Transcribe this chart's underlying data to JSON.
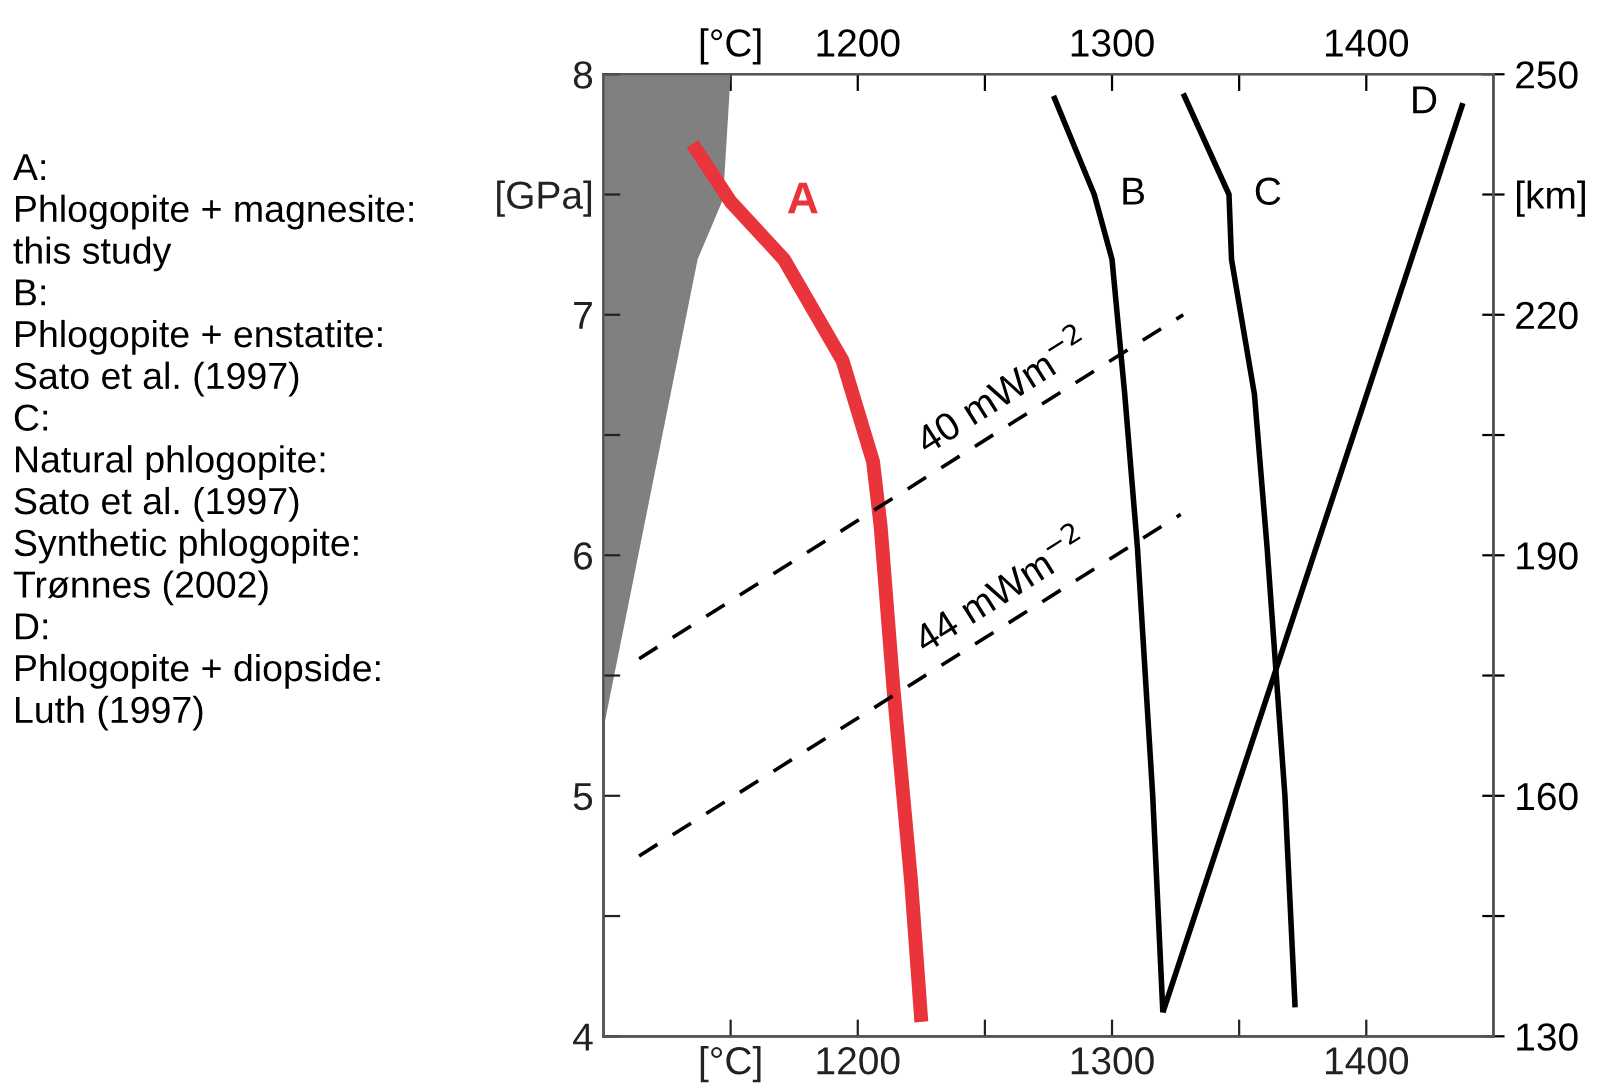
{
  "chart_data": {
    "type": "line",
    "xlim": [
      1100,
      1450
    ],
    "xticks": [
      {
        "value": 1150,
        "label": "[°C]"
      },
      1200,
      {
        "value": 1250,
        "label": null
      },
      1300,
      {
        "value": 1350,
        "label": null
      },
      1400
    ],
    "x2lim": [
      1100,
      1450
    ],
    "x2ticks": [
      {
        "value": 1150,
        "label": "[°C]"
      },
      1200,
      {
        "value": 1250,
        "label": null
      },
      1300,
      {
        "value": 1350,
        "label": null
      },
      1400
    ],
    "ylim": [
      4,
      8
    ],
    "yticks": [
      4,
      {
        "value": 4.5,
        "label": null
      },
      5,
      {
        "value": 5.5,
        "label": null
      },
      6,
      {
        "value": 6.5,
        "label": null
      },
      7,
      {
        "value": 7.5,
        "label": "[GPa]"
      },
      8
    ],
    "y2lim": [
      130,
      250
    ],
    "y2ticks": [
      130,
      {
        "value": 145,
        "label": null
      },
      160,
      {
        "value": 175,
        "label": null
      },
      190,
      {
        "value": 205,
        "label": null
      },
      220,
      {
        "value": 235,
        "label": "[km]"
      },
      250
    ],
    "grid": false,
    "marker": "none",
    "series": [
      {
        "type": "area",
        "color": "#808080",
        "x": [
          1100,
          1100,
          1137,
          1147,
          1150
        ],
        "values": [
          8.0,
          5.28,
          7.23,
          7.48,
          8.0
        ]
      },
      {
        "name": "A",
        "color": "#e8343a",
        "x": [
          1135,
          1150,
          1171,
          1194,
          1206,
          1209,
          1214,
          1221,
          1225
        ],
        "values": [
          7.71,
          7.47,
          7.23,
          6.81,
          6.39,
          6.12,
          5.45,
          4.64,
          4.06
        ]
      },
      {
        "name": "B",
        "color": "#000000",
        "x": [
          1277,
          1293,
          1300,
          1305,
          1310,
          1316,
          1320
        ],
        "values": [
          7.91,
          7.5,
          7.23,
          6.67,
          6.03,
          5.0,
          4.1
        ]
      },
      {
        "name": "C",
        "color": "#000000",
        "x": [
          1328,
          1346,
          1347,
          1356,
          1361,
          1368,
          1372
        ],
        "values": [
          7.92,
          7.5,
          7.23,
          6.67,
          6.03,
          5.0,
          4.12
        ]
      },
      {
        "name": "D",
        "color": "#000000",
        "x": [
          1320,
          1438
        ],
        "values": [
          4.1,
          7.88
        ]
      },
      {
        "color": "#000000",
        "line_style": "dashed",
        "x": [
          1114,
          1328
        ],
        "values": [
          5.57,
          7.0
        ]
      },
      {
        "color": "#000000",
        "line_style": "dashed",
        "x": [
          1114,
          1327
        ],
        "values": [
          4.75,
          6.17
        ]
      }
    ],
    "annotations": [
      "40 mWm$^{−2}$",
      "44 mWm$^{−2}$",
      "A:\nPhlogopite + magnesite:\nthis study\nB:\nPhlogopite + enstatite:\nSato et al. (1997)\nC:\nNatural phlogopite:\nSato et al. (1997)\nSynthetic phlogopite:\nTrønnes (2002)\nD:\nPhlogopite + diopside:\nLuth (1997)"
    ]
  }
}
